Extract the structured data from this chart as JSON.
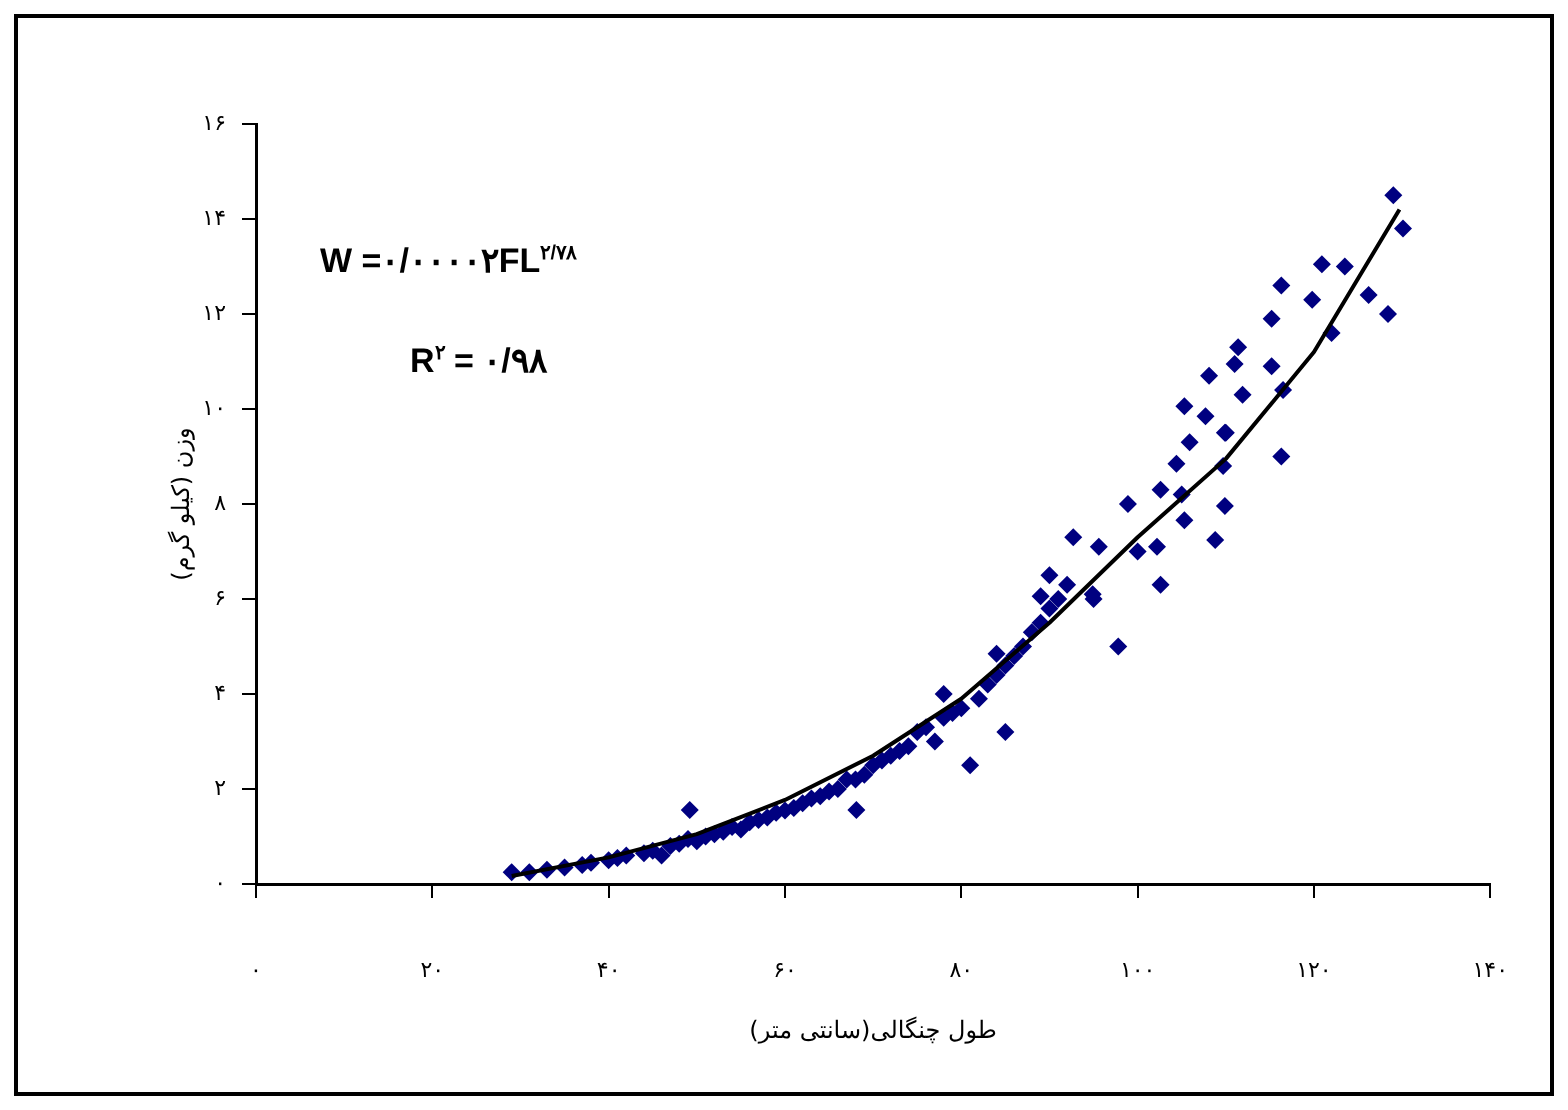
{
  "chart_data": {
    "type": "scatter",
    "xlabel": "طول چنگالی(سانتی متر)",
    "ylabel": "وزن (کیلو گرم)",
    "annotations": [
      "W =۰/۰۰۰۰۲FL$^{۲/۷۸}$",
      "R$^{۲}$ = ۰/۹۸"
    ],
    "xlim": [
      0,
      140
    ],
    "ylim": [
      0,
      16
    ],
    "xticks": [
      {
        "value": 0,
        "label": "۰"
      },
      {
        "value": 20,
        "label": "۲۰"
      },
      {
        "value": 40,
        "label": "۴۰"
      },
      {
        "value": 60,
        "label": "۶۰"
      },
      {
        "value": 80,
        "label": "۸۰"
      },
      {
        "value": 100,
        "label": "۱۰۰"
      },
      {
        "value": 120,
        "label": "۱۲۰"
      },
      {
        "value": 140,
        "label": "۱۴۰"
      }
    ],
    "yticks": [
      {
        "value": 0,
        "label": "۰"
      },
      {
        "value": 2,
        "label": "۲"
      },
      {
        "value": 4,
        "label": "۴"
      },
      {
        "value": 6,
        "label": "۶"
      },
      {
        "value": 8,
        "label": "۸"
      },
      {
        "value": 10,
        "label": "۱۰"
      },
      {
        "value": 12,
        "label": "۱۲"
      },
      {
        "value": 14,
        "label": "۱۴"
      },
      {
        "value": 16,
        "label": "۱۶"
      }
    ],
    "grid": false,
    "legend": false,
    "series": [
      {
        "color": "#000080",
        "marker": "diamond",
        "x": [
          29,
          31,
          33,
          35,
          37,
          38,
          40,
          41,
          42,
          44,
          45,
          46,
          47,
          48,
          49,
          49.2,
          50,
          51,
          52,
          53,
          54,
          55,
          56,
          57,
          58,
          59,
          60,
          61,
          62,
          63,
          64,
          65,
          66,
          67,
          68,
          68.1,
          69,
          70,
          71,
          72,
          73,
          74,
          75,
          76,
          77,
          78,
          78,
          79,
          80,
          81,
          82,
          83,
          84,
          84,
          85,
          85,
          86,
          87,
          88,
          89,
          89,
          90,
          90,
          91,
          92,
          92.7,
          94.9,
          95,
          95.6,
          97.8,
          98.9,
          100,
          102.2,
          102.6,
          102.6,
          104.4,
          105,
          105.3,
          105.3,
          105.9,
          107.7,
          108.1,
          108.8,
          109.7,
          109.9,
          109.9,
          110,
          111,
          111.4,
          111.9,
          115.2,
          115.2,
          116.3,
          116.3,
          116.5,
          119.8,
          120.9,
          122,
          123.5,
          126.2,
          128.4,
          129,
          130.1
        ],
        "values": [
          0.25,
          0.25,
          0.3,
          0.35,
          0.4,
          0.45,
          0.5,
          0.55,
          0.6,
          0.65,
          0.7,
          0.6,
          0.8,
          0.85,
          0.95,
          1.56,
          0.9,
          1.0,
          1.05,
          1.1,
          1.2,
          1.15,
          1.3,
          1.35,
          1.4,
          1.5,
          1.55,
          1.6,
          1.7,
          1.8,
          1.85,
          1.95,
          2.0,
          2.2,
          2.2,
          1.56,
          2.3,
          2.5,
          2.6,
          2.7,
          2.8,
          2.9,
          3.2,
          3.3,
          3.0,
          3.5,
          4.0,
          3.6,
          3.7,
          2.5,
          3.9,
          4.2,
          4.4,
          4.85,
          4.6,
          3.2,
          4.8,
          5.0,
          5.3,
          5.5,
          6.06,
          5.8,
          6.5,
          6.0,
          6.3,
          7.3,
          6.1,
          6.0,
          7.1,
          5.0,
          8.0,
          7.0,
          7.1,
          8.3,
          6.3,
          8.85,
          8.2,
          7.66,
          10.06,
          9.3,
          9.85,
          10.7,
          7.24,
          8.8,
          9.5,
          7.96,
          9.5,
          10.95,
          11.3,
          10.3,
          11.9,
          10.9,
          12.6,
          9.0,
          10.4,
          12.3,
          13.05,
          11.6,
          13.0,
          12.4,
          12.0,
          14.5,
          13.8
        ]
      },
      {
        "type": "line",
        "color": "#000000",
        "marker": "none",
        "x": [
          29,
          40,
          50,
          60,
          70,
          80,
          90,
          100,
          110,
          120,
          129.7
        ],
        "values": [
          0.17,
          0.56,
          1.05,
          1.77,
          2.7,
          3.9,
          5.5,
          7.3,
          8.95,
          11.2,
          14.2
        ]
      }
    ]
  }
}
